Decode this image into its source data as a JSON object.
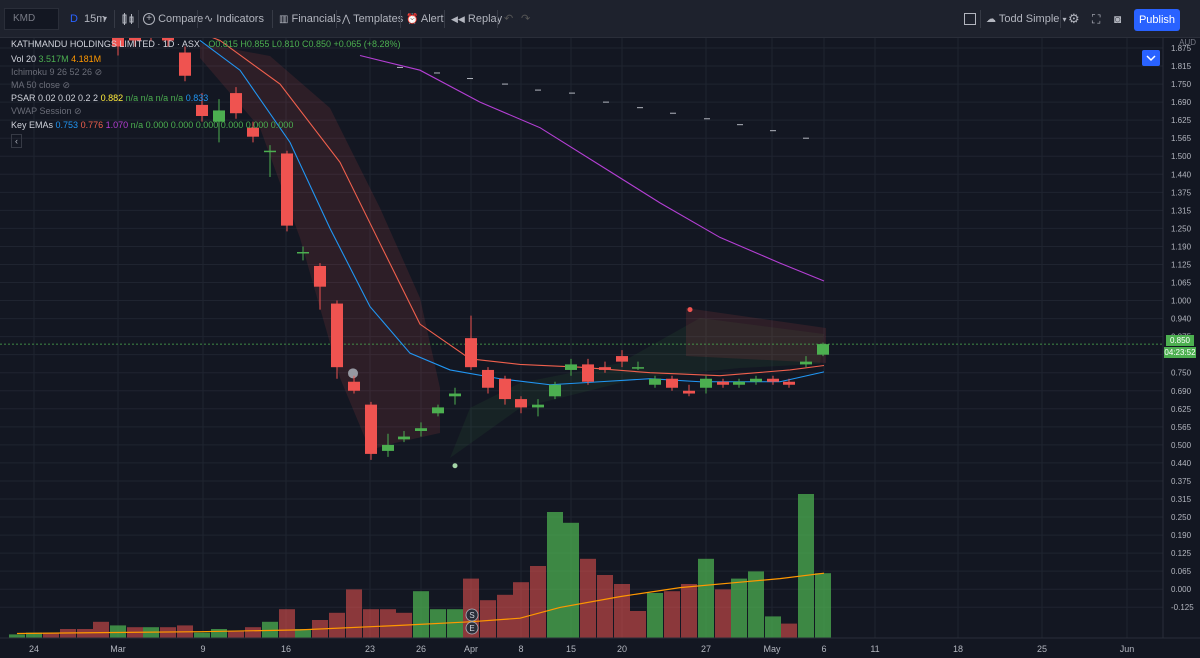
{
  "toolbar": {
    "symbol": "KMD",
    "interval_d": "D",
    "interval": "15m",
    "compare": "Compare",
    "indicators": "Indicators",
    "financials": "Financials",
    "templates": "Templates",
    "alert": "Alert",
    "replay": "Replay",
    "layout": "Todd Simple",
    "publish": "Publish"
  },
  "legend": {
    "title": "KATHMANDU HOLDINGS LIMITED · 1D · ASX",
    "ohlc": "O0.815  H0.855  L0.810  C0.850  +0.065 (+8.28%)",
    "vol_label": "Vol 20",
    "vol_v1": "3.517M",
    "vol_v2": "4.181M",
    "ichimoku": "Ichimoku 9 26 52 26",
    "ma": "MA 50 close",
    "psar_label": "PSAR 0.02 0.02 0.2 2",
    "psar_v1": "0.882",
    "psar_rest": "n/a  n/a  n/a  n/a",
    "psar_v2": "0.833",
    "vwap": "VWAP Session",
    "ema_label": "Key EMAs",
    "ema_v1": "0.753",
    "ema_v2": "0.776",
    "ema_v3": "1.070",
    "ema_rest": "n/a 0.000 0.000 0.000 0.000 0.000 0.000"
  },
  "price_axis": {
    "currency": "AUD",
    "ticks": [
      "1.875",
      "1.815",
      "1.750",
      "1.690",
      "1.625",
      "1.565",
      "1.500",
      "1.440",
      "1.375",
      "1.315",
      "1.250",
      "1.190",
      "1.125",
      "1.065",
      "1.000",
      "0.940",
      "0.875",
      "0.815",
      "0.750",
      "0.690",
      "0.625",
      "0.565",
      "0.500",
      "0.440",
      "0.375",
      "0.315",
      "0.250",
      "0.190",
      "0.125",
      "0.065",
      "0.000",
      "-0.125"
    ],
    "last_price": "0.850",
    "countdown": "04:23:52"
  },
  "time_axis": [
    "24",
    "Mar",
    "9",
    "16",
    "23",
    "26",
    "Apr",
    "8",
    "15",
    "20",
    "27",
    "May",
    "6",
    "11",
    "18",
    "25",
    "Jun"
  ],
  "event_markers": [
    "S",
    "E"
  ],
  "colors": {
    "bg": "#131722",
    "up": "#4caf50",
    "down": "#ef5350",
    "ema_blue": "#2196f3",
    "ema_red": "#f0604d",
    "ma_purple": "#b43fd4",
    "vol_ma": "#ff9800",
    "accent": "#2962ff"
  }
}
